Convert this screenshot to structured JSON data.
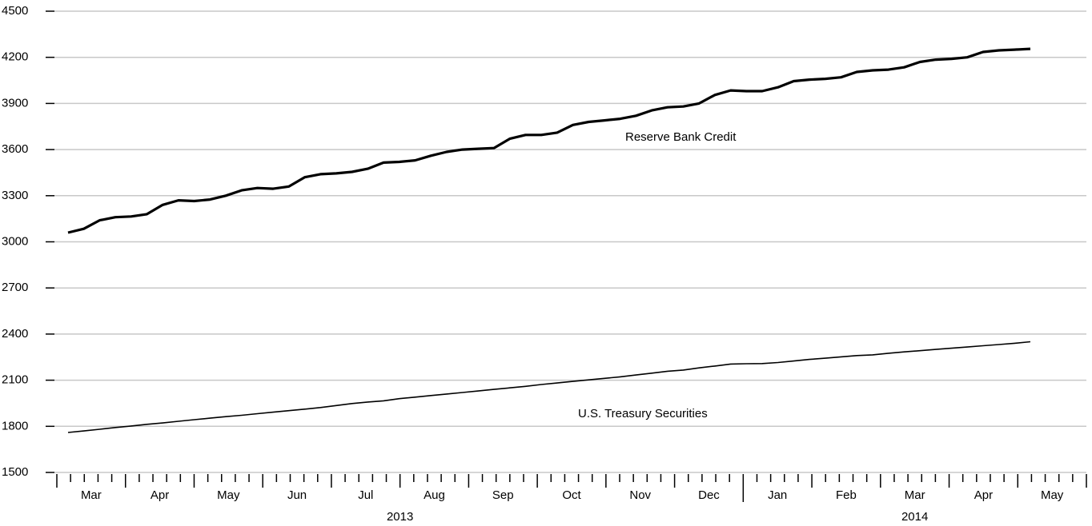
{
  "chart_data": {
    "type": "line",
    "ylim": [
      1500,
      4500
    ],
    "yticks": [
      1500,
      1800,
      2100,
      2400,
      2700,
      3000,
      3300,
      3600,
      3900,
      4200,
      4500
    ],
    "grid": true,
    "month_groups": [
      {
        "year": "2013",
        "months": [
          "Mar",
          "Apr",
          "May",
          "Jun",
          "Jul",
          "Aug",
          "Sep",
          "Oct",
          "Nov",
          "Dec"
        ]
      },
      {
        "year": "2014",
        "months": [
          "Jan",
          "Feb",
          "Mar",
          "Apr",
          "May"
        ]
      }
    ],
    "series": [
      {
        "name": "Reserve Bank Credit",
        "color": "#000000",
        "values": [
          3060,
          3085,
          3140,
          3160,
          3165,
          3180,
          3240,
          3270,
          3265,
          3275,
          3300,
          3335,
          3350,
          3345,
          3360,
          3420,
          3440,
          3445,
          3455,
          3475,
          3515,
          3520,
          3530,
          3560,
          3585,
          3600,
          3605,
          3610,
          3670,
          3695,
          3695,
          3710,
          3760,
          3780,
          3790,
          3800,
          3820,
          3855,
          3875,
          3880,
          3900,
          3955,
          3985,
          3980,
          3980,
          4005,
          4045,
          4055,
          4060,
          4070,
          4105,
          4115,
          4120,
          4135,
          4170,
          4185,
          4190,
          4200,
          4235,
          4245,
          4250,
          4255
        ]
      },
      {
        "name": "U.S. Treasury Securities",
        "color": "#000000",
        "values": [
          1760,
          1770,
          1781,
          1792,
          1802,
          1813,
          1822,
          1833,
          1843,
          1853,
          1863,
          1872,
          1882,
          1892,
          1902,
          1912,
          1922,
          1935,
          1948,
          1958,
          1966,
          1980,
          1990,
          2000,
          2010,
          2020,
          2030,
          2040,
          2050,
          2060,
          2072,
          2082,
          2092,
          2102,
          2112,
          2122,
          2134,
          2146,
          2158,
          2166,
          2180,
          2192,
          2205,
          2207,
          2208,
          2215,
          2225,
          2235,
          2243,
          2252,
          2260,
          2265,
          2275,
          2284,
          2292,
          2300,
          2308,
          2316,
          2324,
          2332,
          2340,
          2350
        ]
      }
    ]
  }
}
